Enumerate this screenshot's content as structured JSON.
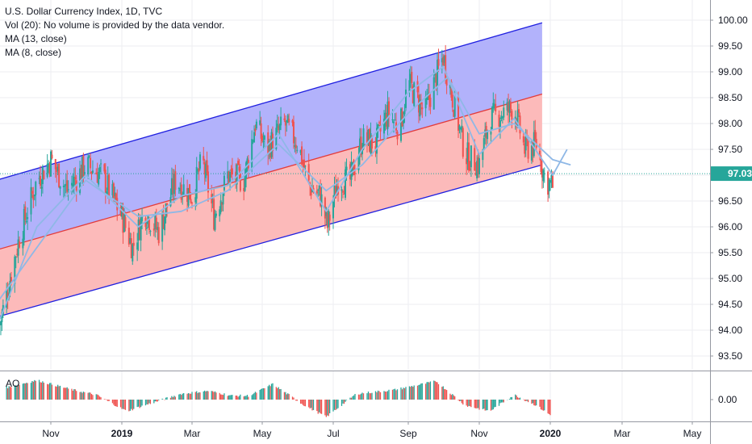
{
  "legend": {
    "title": "U.S. Dollar Currency Index, 1D, TVC",
    "vol": "Vol (20): No volume is provided by the data vendor.",
    "ma13": "MA (13, close)",
    "ma8": "MA (8, close)"
  },
  "ao_label": "AO",
  "colors": {
    "up": "#26a69a",
    "down": "#ef5350",
    "channel_line": "#2020e0",
    "upper_fill": "#aeaefb",
    "lower_fill": "#fcb6b6",
    "mid_line": "#e33b3b",
    "ma": "#8fb8e6",
    "price_badge": "#26a69a"
  },
  "chart_data": [
    {
      "type": "candlestick",
      "title": "U.S. Dollar Currency Index, 1D, TVC",
      "x_ticks": [
        "Nov",
        "2019",
        "Mar",
        "May",
        "Jul",
        "Sep",
        "Nov",
        "2020",
        "Mar",
        "May"
      ],
      "y_ticks": [
        "100.00",
        "99.50",
        "99.00",
        "98.50",
        "98.00",
        "97.50",
        "97.00",
        "96.50",
        "96.00",
        "95.50",
        "95.00",
        "94.50",
        "94.00",
        "93.50"
      ],
      "ylim": [
        93.0,
        100.4
      ],
      "last_price": "97.03",
      "series": [
        {
          "name": "price_path",
          "points": [
            [
              "2018-09-18",
              94.1
            ],
            [
              "2018-10-05",
              95.8
            ],
            [
              "2018-10-20",
              96.9
            ],
            [
              "2018-11-01",
              97.3
            ],
            [
              "2018-11-15",
              96.7
            ],
            [
              "2018-12-01",
              97.2
            ],
            [
              "2018-12-15",
              97.0
            ],
            [
              "2019-01-01",
              96.2
            ],
            [
              "2019-01-10",
              95.6
            ],
            [
              "2019-01-20",
              96.3
            ],
            [
              "2019-02-01",
              95.9
            ],
            [
              "2019-02-15",
              96.9
            ],
            [
              "2019-03-01",
              96.6
            ],
            [
              "2019-03-10",
              97.3
            ],
            [
              "2019-03-20",
              96.2
            ],
            [
              "2019-04-01",
              97.0
            ],
            [
              "2019-04-15",
              96.9
            ],
            [
              "2019-04-25",
              98.0
            ],
            [
              "2019-05-05",
              97.5
            ],
            [
              "2019-05-20",
              98.0
            ],
            [
              "2019-06-01",
              97.6
            ],
            [
              "2019-06-10",
              96.8
            ],
            [
              "2019-06-20",
              96.6
            ],
            [
              "2019-06-26",
              96.0
            ],
            [
              "2019-07-05",
              96.9
            ],
            [
              "2019-07-15",
              96.9
            ],
            [
              "2019-07-25",
              97.7
            ],
            [
              "2019-08-05",
              97.6
            ],
            [
              "2019-08-15",
              98.2
            ],
            [
              "2019-08-25",
              97.9
            ],
            [
              "2019-09-01",
              98.8
            ],
            [
              "2019-09-15",
              98.2
            ],
            [
              "2019-09-25",
              98.9
            ],
            [
              "2019-10-01",
              99.3
            ],
            [
              "2019-10-10",
              98.4
            ],
            [
              "2019-10-20",
              97.4
            ],
            [
              "2019-11-01",
              97.2
            ],
            [
              "2019-11-10",
              98.1
            ],
            [
              "2019-11-20",
              98.2
            ],
            [
              "2019-12-01",
              98.3
            ],
            [
              "2019-12-10",
              97.5
            ],
            [
              "2019-12-20",
              97.6
            ],
            [
              "2019-12-28",
              96.9
            ],
            [
              "2020-01-03",
              96.8
            ]
          ]
        },
        {
          "name": "MA (13, close)",
          "points": [
            [
              "2018-09-18",
              94.6
            ],
            [
              "2018-10-20",
              95.6
            ],
            [
              "2018-12-01",
              96.9
            ],
            [
              "2019-01-15",
              96.2
            ],
            [
              "2019-02-20",
              96.3
            ],
            [
              "2019-04-01",
              96.7
            ],
            [
              "2019-05-15",
              97.6
            ],
            [
              "2019-06-25",
              96.7
            ],
            [
              "2019-07-25",
              97.2
            ],
            [
              "2019-09-01",
              98.2
            ],
            [
              "2019-10-05",
              98.9
            ],
            [
              "2019-11-01",
              97.8
            ],
            [
              "2019-12-01",
              98.0
            ],
            [
              "2020-01-03",
              97.3
            ],
            [
              "2020-01-18",
              97.2
            ]
          ]
        },
        {
          "name": "MA (8, close)",
          "points": [
            [
              "2018-09-18",
              94.2
            ],
            [
              "2018-10-20",
              96.0
            ],
            [
              "2018-12-01",
              97.0
            ],
            [
              "2019-01-15",
              96.0
            ],
            [
              "2019-02-20",
              96.6
            ],
            [
              "2019-04-01",
              96.8
            ],
            [
              "2019-05-15",
              97.8
            ],
            [
              "2019-06-25",
              96.3
            ],
            [
              "2019-07-25",
              97.5
            ],
            [
              "2019-09-01",
              98.6
            ],
            [
              "2019-10-01",
              99.1
            ],
            [
              "2019-11-01",
              97.4
            ],
            [
              "2019-12-01",
              98.1
            ],
            [
              "2020-01-03",
              97.0
            ],
            [
              "2020-01-15",
              97.5
            ]
          ]
        }
      ],
      "channel": {
        "upper": [
          [
            "2018-09-18",
            96.92
          ],
          [
            "2019-12-25",
            99.95
          ]
        ],
        "middle": [
          [
            "2018-09-18",
            95.57
          ],
          [
            "2019-12-25",
            98.57
          ]
        ],
        "lower": [
          [
            "2018-09-18",
            94.27
          ],
          [
            "2019-12-25",
            97.2
          ]
        ]
      },
      "grid": true
    },
    {
      "type": "bar",
      "title": "AO",
      "y_ticks": [
        "0.00"
      ],
      "ylim": [
        -1.3,
        1.3
      ],
      "segments": [
        [
          "2018-09-22",
          0.6
        ],
        [
          "2018-10-20",
          1.0
        ],
        [
          "2018-11-20",
          0.5
        ],
        [
          "2018-12-10",
          0.25
        ],
        [
          "2019-01-05",
          -0.6
        ],
        [
          "2019-01-25",
          -0.2
        ],
        [
          "2019-02-20",
          0.3
        ],
        [
          "2019-03-15",
          0.45
        ],
        [
          "2019-04-05",
          0.2
        ],
        [
          "2019-04-20",
          0.2
        ],
        [
          "2019-05-10",
          0.8
        ],
        [
          "2019-06-05",
          -0.25
        ],
        [
          "2019-06-25",
          -0.9
        ],
        [
          "2019-07-20",
          0.3
        ],
        [
          "2019-08-20",
          0.5
        ],
        [
          "2019-09-25",
          0.95
        ],
        [
          "2019-10-20",
          -0.3
        ],
        [
          "2019-11-10",
          -0.6
        ],
        [
          "2019-12-01",
          0.25
        ],
        [
          "2019-12-20",
          -0.3
        ],
        [
          "2020-01-01",
          -0.8
        ]
      ]
    }
  ]
}
